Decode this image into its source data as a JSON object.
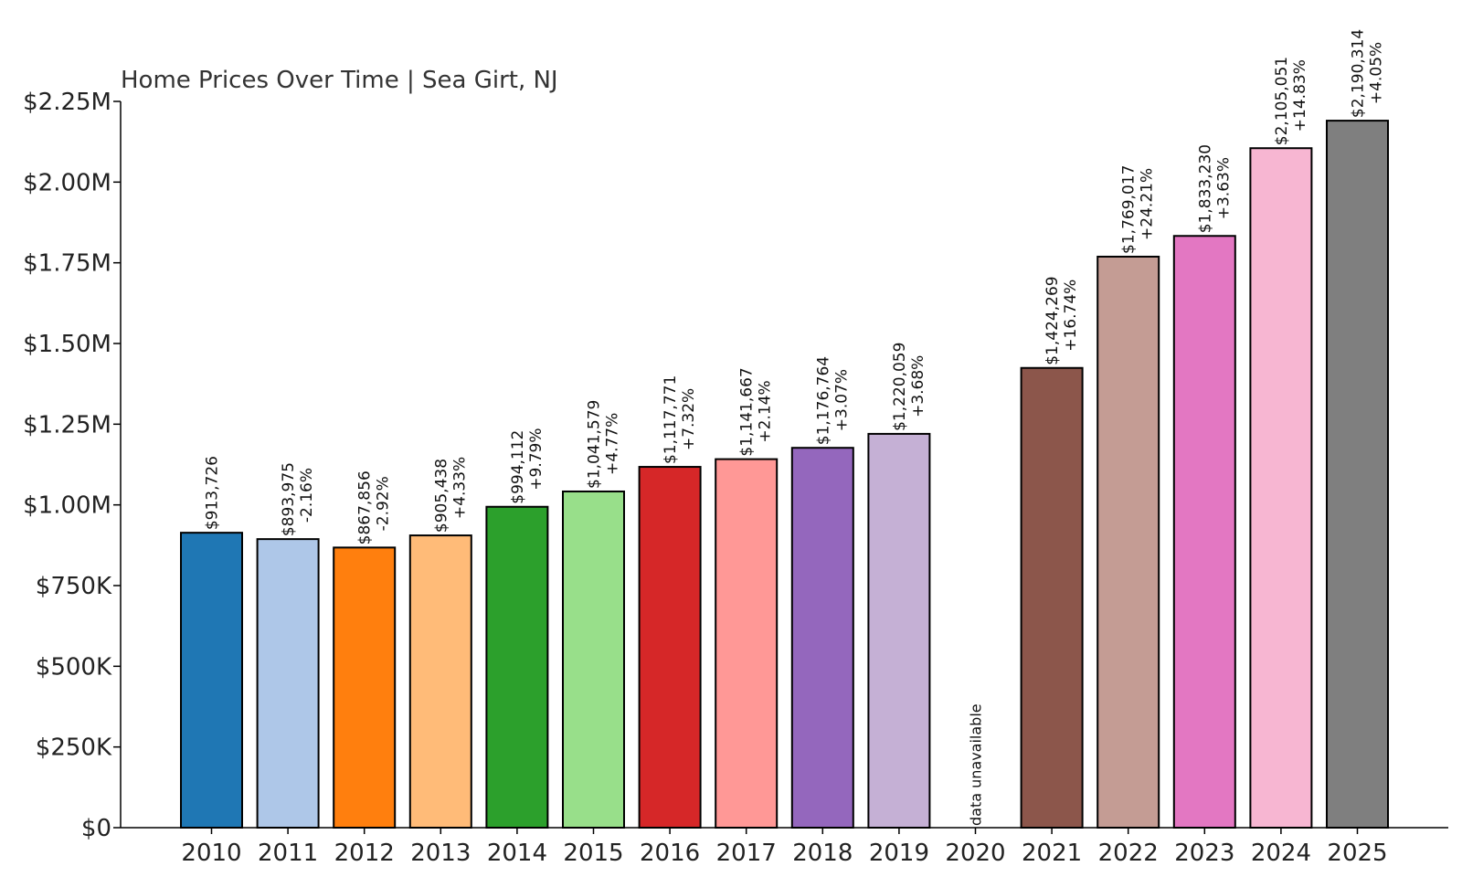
{
  "chart_data": {
    "type": "bar",
    "title": "Home Prices Over Time | Sea Girt, NJ",
    "xlabel": "",
    "ylabel": "",
    "ylim": [
      0,
      2250000
    ],
    "grid": false,
    "legend": "none",
    "yticks": [
      {
        "value": 0,
        "label": "$0"
      },
      {
        "value": 250000,
        "label": "$250K"
      },
      {
        "value": 500000,
        "label": "$500K"
      },
      {
        "value": 750000,
        "label": "$750K"
      },
      {
        "value": 1000000,
        "label": "$1.00M"
      },
      {
        "value": 1250000,
        "label": "$1.25M"
      },
      {
        "value": 1500000,
        "label": "$1.50M"
      },
      {
        "value": 1750000,
        "label": "$1.75M"
      },
      {
        "value": 2000000,
        "label": "$2.00M"
      },
      {
        "value": 2250000,
        "label": "$2.25M"
      }
    ],
    "categories": [
      "2010",
      "2011",
      "2012",
      "2013",
      "2014",
      "2015",
      "2016",
      "2017",
      "2018",
      "2019",
      "2020",
      "2021",
      "2022",
      "2023",
      "2024",
      "2025"
    ],
    "values": [
      913726,
      893975,
      867856,
      905438,
      994112,
      1041579,
      1117771,
      1141667,
      1176764,
      1220059,
      null,
      1424269,
      1769017,
      1833230,
      2105051,
      2190314
    ],
    "value_labels": [
      "$913,726",
      "$893,975",
      "$867,856",
      "$905,438",
      "$994,112",
      "$1,041,579",
      "$1,117,771",
      "$1,141,667",
      "$1,176,764",
      "$1,220,059",
      "",
      "$1,424,269",
      "$1,769,017",
      "$1,833,230",
      "$2,105,051",
      "$2,190,314"
    ],
    "change_labels": [
      "",
      "-2.16%",
      "-2.92%",
      "+4.33%",
      "+9.79%",
      "+4.77%",
      "+7.32%",
      "+2.14%",
      "+3.07%",
      "+3.68%",
      "",
      "+16.74%",
      "+24.21%",
      "+3.63%",
      "+14.83%",
      "+4.05%"
    ],
    "missing_label": "data unavailable",
    "colors": [
      "#1f77b4",
      "#aec7e8",
      "#ff7f0e",
      "#ffbb78",
      "#2ca02c",
      "#98df8a",
      "#d62728",
      "#ff9896",
      "#9467bd",
      "#c5b0d5",
      "#8c564b",
      "#8c564b",
      "#c49c94",
      "#e377c2",
      "#f7b6d2",
      "#7f7f7f"
    ]
  }
}
